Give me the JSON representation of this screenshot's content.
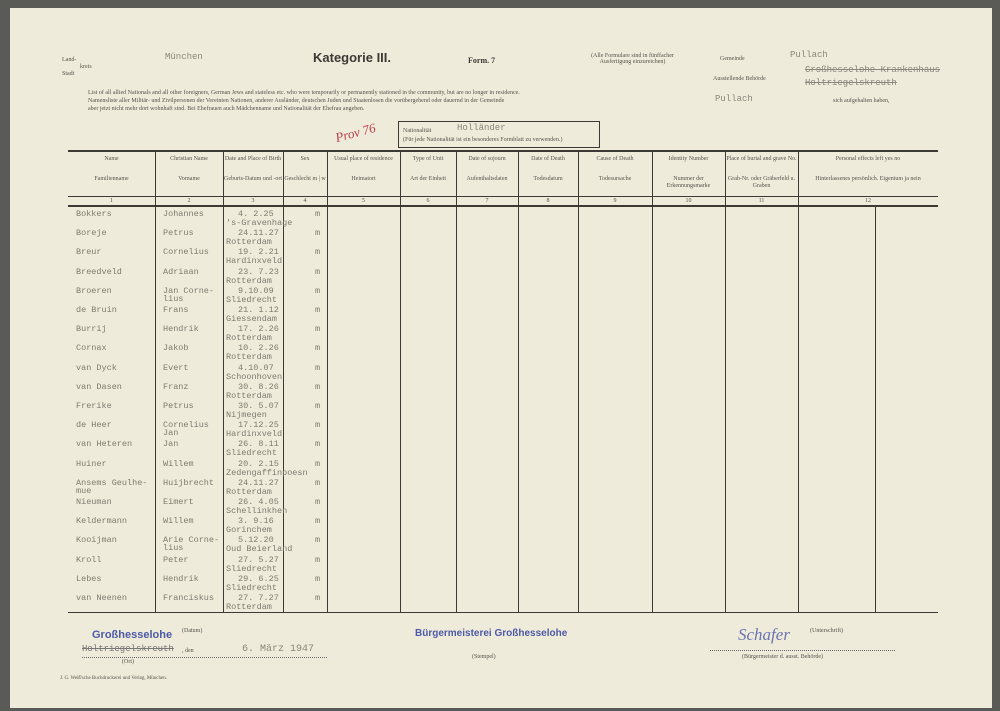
{
  "header": {
    "land_label": "Land-",
    "kreis_label": "kreis",
    "stadt_label": "Stadt",
    "kreis_value": "München",
    "title": "Kategorie III.",
    "form": "Form. 7",
    "note": "(Alle Formulare sind in fünffacher Ausfertigung einzureichen)",
    "gemeinde_label": "Gemeinde",
    "gemeinde_value": "Pullach",
    "behoerde_label": "Ausstellende Behörde",
    "behoerde_value_1": "Großhesselohe Krankenhaus",
    "behoerde_value_2": "Holtriegelskreuth"
  },
  "intro": {
    "line1": "List of all allied Nationals and all other foreigners, German Jews and stateless etc. who were temporarily or permanently stationed in the community, but are no longer in residence.",
    "line2": "Namensliste aller Militär- und Zivilpersonen der Vereinten Nationen, anderer Ausländer, deutschen Juden und Staatenlosen die vorübergehend oder dauernd in der Gemeinde",
    "gemeinde_fill": "Pullach",
    "line2_end": "sich aufgehalten haben,",
    "line3": "aber jetzt nicht mehr dort wohnhaft sind. Bei Ehefrauen auch Mädchenname und Nationalität der Ehefrau angeben."
  },
  "nationality": {
    "label": "Nationalität",
    "value": "Holländer",
    "note": "(Für jede Nationalität ist ein besonderes Formblatt zu verwenden.)",
    "handwritten": "Prov 76"
  },
  "columns": [
    {
      "en": "Name",
      "de": "Familienname",
      "n": "1"
    },
    {
      "en": "Christian Name",
      "de": "Vorname",
      "n": "2"
    },
    {
      "en": "Date and Place of Birth",
      "de": "Geburts-Datum und -ort",
      "n": "3"
    },
    {
      "en": "Sex",
      "de": "Geschlecht m | w",
      "n": "4"
    },
    {
      "en": "Usual place of residence",
      "de": "Heimatort",
      "n": "5"
    },
    {
      "en": "Type of Unit",
      "de": "Art der Einheit",
      "n": "6"
    },
    {
      "en": "Date of sojourn",
      "de": "Aufenthaltsdaten",
      "n": "7"
    },
    {
      "en": "Date of Death",
      "de": "Todesdatum",
      "n": "8"
    },
    {
      "en": "Cause of Death",
      "de": "Todesursache",
      "n": "9"
    },
    {
      "en": "Identity Number",
      "de": "Nummer der Erkennungsmarke",
      "n": "10"
    },
    {
      "en": "Place of burial and grave No.",
      "de": "Grab-Nr. oder Gräberfeld u. Graben",
      "n": "11"
    },
    {
      "en": "Personal effects left yes   no",
      "de": "Hinterlassenes persönlich. Eigentum ja   nein",
      "n": "12"
    }
  ],
  "rows": [
    {
      "family": "Bokkers",
      "given": "Johannes",
      "date": "4. 2.25",
      "place": "'s-Gravenhage",
      "sex": "m"
    },
    {
      "family": "Boreje",
      "given": "Petrus",
      "date": "24.11.27",
      "place": "Rotterdam",
      "sex": "m"
    },
    {
      "family": "Breur",
      "given": "Cornelius",
      "date": "19. 2.21",
      "place": "Hardinxveld",
      "sex": "m"
    },
    {
      "family": "Breedveld",
      "given": "Adriaan",
      "date": "23. 7.23",
      "place": "Rotterdam",
      "sex": "m"
    },
    {
      "family": "Broeren",
      "given": "Jan Corne-\nlius",
      "date": "9.10.09",
      "place": "Sliedrecht",
      "sex": "m"
    },
    {
      "family": "de Bruin",
      "given": "Frans",
      "date": "21. 1.12",
      "place": "Giessendam",
      "sex": "m"
    },
    {
      "family": "Burrij",
      "given": "Hendrik",
      "date": "17. 2.26",
      "place": "Rotterdam",
      "sex": "m"
    },
    {
      "family": "Cornax",
      "given": "Jakob",
      "date": "10. 2.26",
      "place": "Rotterdam",
      "sex": "m"
    },
    {
      "family": "van Dyck",
      "given": "Evert",
      "date": "4.10.07",
      "place": "Schoonhoven",
      "sex": "m"
    },
    {
      "family": "van Dasen",
      "given": "Franz",
      "date": "30. 8.26",
      "place": "Rotterdam",
      "sex": "m"
    },
    {
      "family": "Frerike",
      "given": "Petrus",
      "date": "30. 5.07",
      "place": "Nijmegen",
      "sex": "m"
    },
    {
      "family": "de Heer",
      "given": "Cornelius\nJan",
      "date": "17.12.25",
      "place": "Hardinxveld",
      "sex": "m"
    },
    {
      "family": "van Heteren",
      "given": "Jan",
      "date": "26. 8.11",
      "place": "Sliedrecht",
      "sex": "m"
    },
    {
      "family": "Huiner",
      "given": "Willem",
      "date": "20. 2.15",
      "place": "Zedengaffinpoesn",
      "sex": "m"
    },
    {
      "family": "Ansems Geulhe-\nmue",
      "given": "Huijbrecht",
      "date": "24.11.27",
      "place": "Rotterdam",
      "sex": "m"
    },
    {
      "family": "Nieuman",
      "given": "Eimert",
      "date": "26. 4.05",
      "place": "Schellinkhen",
      "sex": "m"
    },
    {
      "family": "Keldermann",
      "given": "Willem",
      "date": "3. 9.16",
      "place": "Gorinchem",
      "sex": "m"
    },
    {
      "family": "Kooijman",
      "given": "Arie Corne-\nlius",
      "date": "5.12.20",
      "place": "Oud Beierland",
      "sex": "m"
    },
    {
      "family": "Kroll",
      "given": "Peter",
      "date": "27. 5.27",
      "place": "Sliedrecht",
      "sex": "m"
    },
    {
      "family": "Lebes",
      "given": "Hendrik",
      "date": "29. 6.25",
      "place": "Sliedrecht",
      "sex": "m"
    },
    {
      "family": "van Neenen",
      "given": "Franciskus",
      "date": "27. 7.27",
      "place": "Rotterdam",
      "sex": "m"
    }
  ],
  "footer": {
    "place_stamp": "Großhesselohe",
    "place_struck": "Holtriegelskreuth",
    "ort_label": "(Ort)",
    "den_label": ", den",
    "datum_label": "(Datum)",
    "date": "6. März 1947",
    "stamp": "Bürgermeisterei Großhesselohe",
    "stamp_label": "(Stempel)",
    "signature": "Schafer",
    "unterschrift_label": "(Unterschrift)",
    "signatory_label": "(Bürgermeister d. ausst. Behörde)",
    "printer": "J. G. Weiß'sche Buchdruckerei und Verlag, München."
  },
  "colors": {
    "paper": "#efebda",
    "ink": "#3c3a34",
    "typewriter": "#8a877c",
    "stamp": "#4d5aa8",
    "pencil": "#c04050"
  }
}
